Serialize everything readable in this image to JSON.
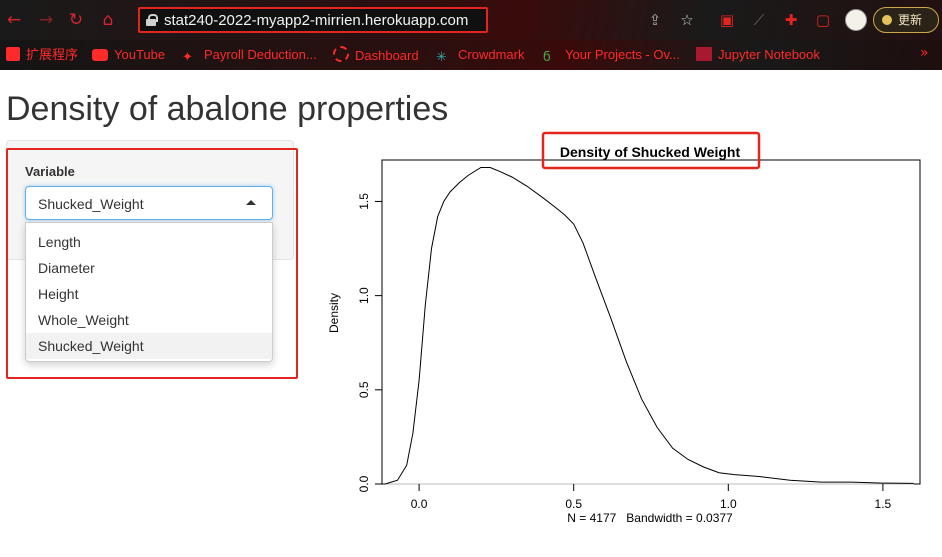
{
  "browser": {
    "url": "stat240-2022-myapp2-mirrien.herokuapp.com",
    "update_label": "更新"
  },
  "bookmarks": [
    {
      "label": "扩展程序",
      "icon": "extensions-icon",
      "color": "#ff2a2a"
    },
    {
      "label": "YouTube",
      "icon": "youtube-icon",
      "color": "#ff2a2a"
    },
    {
      "label": "Payroll Deduction...",
      "icon": "maple-leaf-icon",
      "color": "#ff2a2a"
    },
    {
      "label": "Dashboard",
      "icon": "dashboard-icon",
      "color": "#ff2a2a"
    },
    {
      "label": "Crowdmark",
      "icon": "crowdmark-icon",
      "color": "#ff2a2a"
    },
    {
      "label": "Your Projects - Ov...",
      "icon": "overleaf-icon",
      "color": "#ff2a2a"
    },
    {
      "label": "Jupyter Notebook",
      "icon": "sfu-icon",
      "color": "#ff2a2a"
    }
  ],
  "page": {
    "title": "Density of abalone properties"
  },
  "sidebar": {
    "variable_label": "Variable",
    "selected": "Shucked_Weight",
    "options": [
      "Length",
      "Diameter",
      "Height",
      "Whole_Weight",
      "Shucked_Weight"
    ]
  },
  "chart_data": {
    "type": "line",
    "title": "Density of Shucked Weight",
    "xlabel": "N = 4177   Bandwidth = 0.0377",
    "ylabel": "Density",
    "xlim": [
      -0.12,
      1.62
    ],
    "ylim": [
      0,
      1.72
    ],
    "xticks": [
      "0.0",
      "0.5",
      "1.0",
      "1.5"
    ],
    "xtick_values": [
      0.0,
      0.5,
      1.0,
      1.5
    ],
    "yticks": [
      "0.0",
      "0.5",
      "1.0",
      "1.5"
    ],
    "ytick_values": [
      0.0,
      0.5,
      1.0,
      1.5
    ],
    "series": [
      {
        "x": [
          -0.11,
          -0.07,
          -0.04,
          -0.02,
          0.0,
          0.02,
          0.04,
          0.06,
          0.08,
          0.1,
          0.13,
          0.16,
          0.2,
          0.23,
          0.26,
          0.3,
          0.35,
          0.4,
          0.44,
          0.47,
          0.5,
          0.53,
          0.57,
          0.62,
          0.67,
          0.72,
          0.77,
          0.82,
          0.87,
          0.92,
          0.97,
          1.02,
          1.1,
          1.2,
          1.3,
          1.4,
          1.5,
          1.6
        ],
        "y": [
          0.0,
          0.02,
          0.1,
          0.27,
          0.55,
          0.95,
          1.25,
          1.42,
          1.5,
          1.55,
          1.6,
          1.64,
          1.68,
          1.68,
          1.66,
          1.63,
          1.58,
          1.52,
          1.47,
          1.43,
          1.38,
          1.28,
          1.1,
          0.88,
          0.65,
          0.45,
          0.3,
          0.19,
          0.13,
          0.09,
          0.06,
          0.05,
          0.04,
          0.02,
          0.01,
          0.01,
          0.005,
          0.003
        ]
      }
    ]
  }
}
